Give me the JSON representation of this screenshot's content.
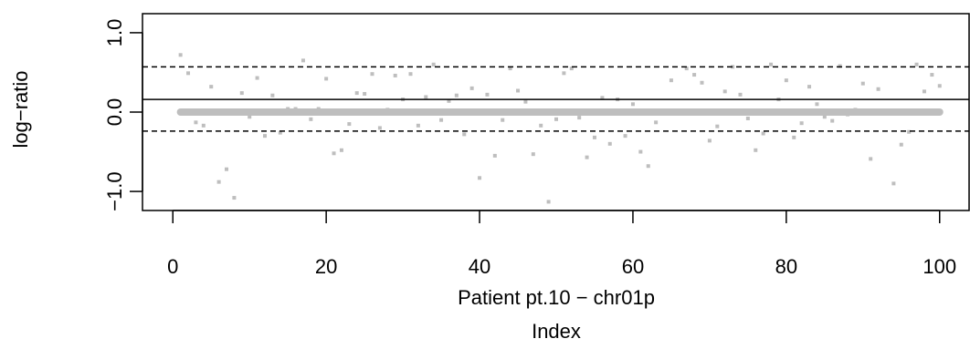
{
  "chart_data": {
    "type": "scatter",
    "xlabel": "Patient pt.10 − chr01p",
    "xlabel2": "Index",
    "ylabel": "log−ratio",
    "xlim": [
      -3.96,
      103.96
    ],
    "ylim": [
      -1.24,
      1.24
    ],
    "x_ticks": [
      0,
      20,
      40,
      60,
      80,
      100
    ],
    "x_tick_labels": [
      "0",
      "20",
      "40",
      "60",
      "80",
      "100"
    ],
    "y_ticks": [
      -1.0,
      0.0,
      1.0
    ],
    "y_tick_labels": [
      "−1.0",
      "0.0",
      "1.0"
    ],
    "reference_lines": [
      {
        "value": 0.16,
        "style": "solid"
      },
      {
        "value": 0.57,
        "style": "dashed"
      },
      {
        "value": -0.24,
        "style": "dashed"
      }
    ],
    "segment": {
      "x_start": 1,
      "x_end": 100,
      "y": 0.0,
      "color": "#bebebe"
    },
    "point_color": "#bebebe",
    "grid": false,
    "series": [
      {
        "x": [
          1,
          2,
          3,
          4,
          5,
          6,
          7,
          8,
          9,
          10,
          11,
          12,
          13,
          14,
          15,
          16,
          17,
          18,
          19,
          20,
          21,
          22,
          23,
          24,
          25,
          26,
          27,
          28,
          29,
          30,
          31,
          32,
          33,
          34,
          35,
          36,
          37,
          38,
          39,
          40,
          41,
          42,
          43,
          44,
          45,
          46,
          47,
          48,
          49,
          50,
          51,
          52,
          53,
          54,
          55,
          56,
          57,
          58,
          59,
          60,
          61,
          62,
          63,
          64,
          65,
          66,
          67,
          68,
          69,
          70,
          71,
          72,
          73,
          74,
          75,
          76,
          77,
          78,
          79,
          80,
          81,
          82,
          83,
          84,
          85,
          86,
          87,
          88,
          89,
          90,
          91,
          92,
          93,
          94,
          95,
          96,
          97,
          98,
          99,
          100
        ],
        "y": [
          0.72,
          0.49,
          -0.13,
          -0.17,
          0.32,
          -0.88,
          -0.72,
          -1.08,
          0.24,
          -0.06,
          0.43,
          -0.3,
          0.21,
          -0.26,
          0.04,
          0.04,
          0.65,
          -0.09,
          0.04,
          0.42,
          -0.52,
          -0.48,
          -0.15,
          0.24,
          0.23,
          0.48,
          -0.2,
          0.03,
          0.46,
          0.16,
          0.48,
          -0.17,
          0.19,
          0.6,
          -0.1,
          0.14,
          0.21,
          -0.28,
          0.3,
          -0.83,
          0.22,
          -0.55,
          -0.1,
          0.55,
          0.27,
          0.13,
          -0.53,
          -0.17,
          -1.13,
          -0.09,
          0.49,
          0.55,
          -0.07,
          -0.57,
          -0.32,
          0.18,
          -0.4,
          0.16,
          -0.3,
          0.1,
          -0.5,
          -0.68,
          -0.13,
          0.02,
          0.4,
          0.02,
          0.55,
          0.47,
          0.37,
          -0.36,
          -0.18,
          0.26,
          0.57,
          0.22,
          -0.08,
          -0.48,
          -0.27,
          0.6,
          0.16,
          0.4,
          -0.32,
          -0.14,
          0.32,
          0.1,
          -0.06,
          -0.11,
          0.58,
          -0.03,
          0.03,
          0.36,
          -0.59,
          0.29,
          -0.02,
          -0.9,
          -0.41,
          -0.25,
          0.6,
          0.26,
          0.47,
          0.33
        ]
      }
    ]
  }
}
